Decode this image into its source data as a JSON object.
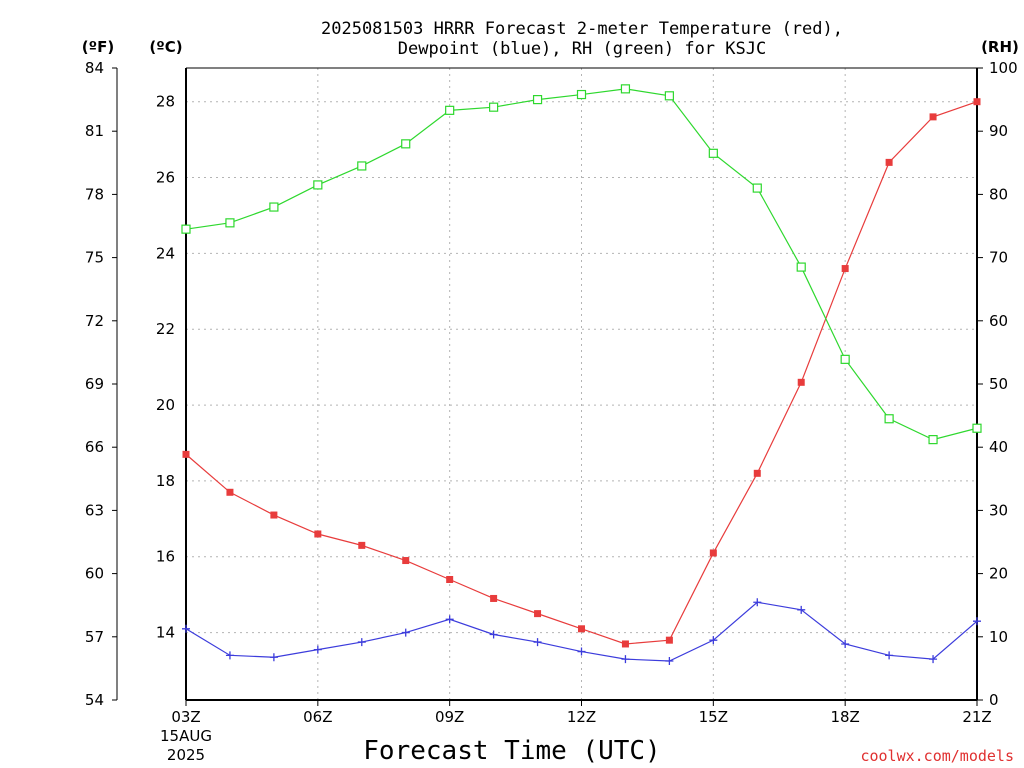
{
  "chart_data": {
    "type": "line",
    "title": [
      "2025081503 HRRR Forecast 2-meter Temperature (red),",
      "Dewpoint (blue), RH (green) for KSJC"
    ],
    "xlabel": "Forecast Time (UTC)",
    "left_units_f": "(ºF)",
    "left_units_c": "(ºC)",
    "right_units": "(RH)",
    "credit": "coolwx.com/models",
    "x": [
      "03Z",
      "04Z",
      "05Z",
      "06Z",
      "07Z",
      "08Z",
      "09Z",
      "10Z",
      "11Z",
      "12Z",
      "13Z",
      "14Z",
      "15Z",
      "16Z",
      "17Z",
      "18Z",
      "19Z",
      "20Z",
      "21Z"
    ],
    "x_tick_labels": [
      "03Z",
      "06Z",
      "09Z",
      "12Z",
      "15Z",
      "18Z",
      "21Z"
    ],
    "date_lines": [
      "15AUG",
      "2025"
    ],
    "y_c_ticks": [
      14,
      16,
      18,
      20,
      22,
      24,
      26,
      28
    ],
    "y_f_ticks": [
      54,
      57,
      60,
      63,
      66,
      69,
      72,
      75,
      78,
      81,
      84
    ],
    "y_rh_ticks": [
      0,
      10,
      20,
      30,
      40,
      50,
      60,
      70,
      80,
      90,
      100
    ],
    "ylim_f": [
      54,
      84
    ],
    "ylim_rh": [
      0,
      100
    ],
    "grid": true,
    "series": [
      {
        "name": "Temperature (red)",
        "color": "#e83c3c",
        "marker": "filled-square",
        "units": "C",
        "values": [
          18.7,
          17.7,
          17.1,
          16.6,
          16.3,
          15.9,
          15.4,
          14.9,
          14.5,
          14.1,
          13.7,
          13.8,
          16.1,
          18.2,
          20.6,
          23.6,
          26.4,
          27.6,
          28.0
        ]
      },
      {
        "name": "Dewpoint (blue)",
        "color": "#3c3cdc",
        "marker": "plus",
        "units": "C",
        "values": [
          14.1,
          13.4,
          13.35,
          13.55,
          13.75,
          14.0,
          14.35,
          13.95,
          13.75,
          13.5,
          13.3,
          13.25,
          13.8,
          14.8,
          14.6,
          13.7,
          13.4,
          13.3,
          14.3
        ]
      },
      {
        "name": "RH (green)",
        "color": "#2ed82e",
        "marker": "open-square",
        "units": "%",
        "values": [
          74.5,
          75.5,
          78,
          81.5,
          84.5,
          88,
          93.3,
          93.8,
          95,
          95.8,
          96.7,
          95.6,
          86.5,
          81,
          68.5,
          53.9,
          44.5,
          41.2,
          43
        ]
      }
    ]
  }
}
